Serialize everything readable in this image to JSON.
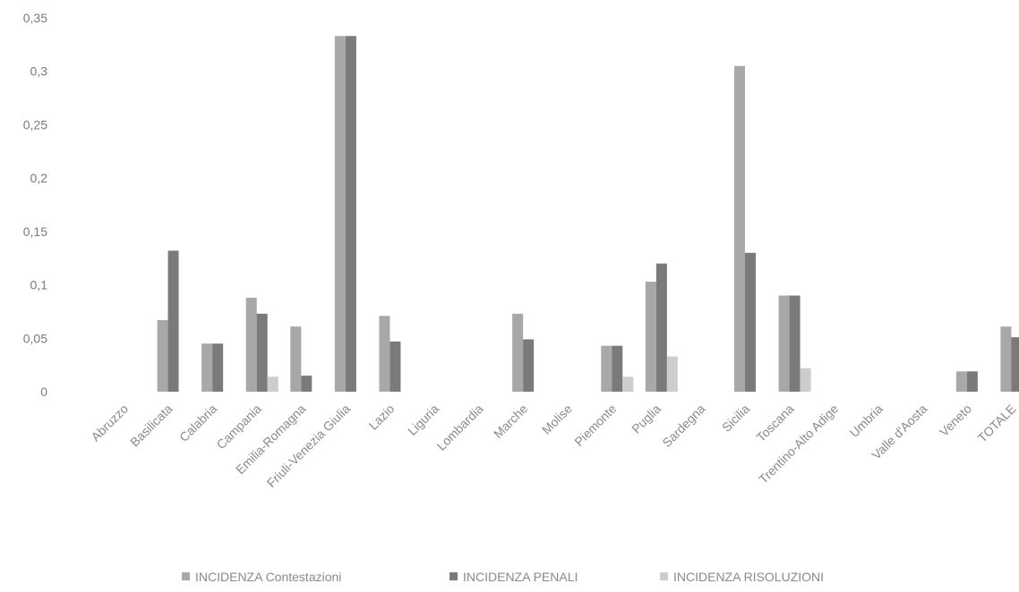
{
  "chart_data": {
    "type": "bar",
    "title": "",
    "xlabel": "",
    "ylabel": "",
    "ylim": [
      0,
      0.35
    ],
    "yticks": [
      "0",
      "0,05",
      "0,1",
      "0,15",
      "0,2",
      "0,25",
      "0,3",
      "0,35"
    ],
    "grid": false,
    "legend_position": "bottom",
    "categories": [
      "Abruzzo",
      "Basilicata",
      "Calabria",
      "Campania",
      "Emilia-Romagna",
      "Friuli-Venezia Giulia",
      "Lazio",
      "Liguria",
      "Lombardia",
      "Marche",
      "Molise",
      "Piemonte",
      "Puglia",
      "Sardegna",
      "Sicilia",
      "Toscana",
      "Trentino-Alto Adige",
      "Umbria",
      "Valle d'Aosta",
      "Veneto",
      "TOTALE"
    ],
    "series": [
      {
        "name": "INCIDENZA Contestazioni",
        "color": "#a8a8a8",
        "values": [
          0,
          0.067,
          0.045,
          0.088,
          0.061,
          0.333,
          0.071,
          0,
          0,
          0.073,
          0,
          0.043,
          0.103,
          0,
          0.305,
          0.09,
          0,
          0,
          0,
          0.019,
          0.061
        ]
      },
      {
        "name": "INCIDENZA PENALI",
        "color": "#7a7a7a",
        "values": [
          0,
          0.132,
          0.045,
          0.073,
          0.015,
          0.333,
          0.047,
          0,
          0,
          0.049,
          0,
          0.043,
          0.12,
          0,
          0.13,
          0.09,
          0,
          0,
          0,
          0.019,
          0.051
        ]
      },
      {
        "name": "INCIDENZA RISOLUZIONI",
        "color": "#cdcdcd",
        "values": [
          0,
          0,
          0,
          0.014,
          0,
          0,
          0,
          0,
          0,
          0,
          0,
          0.014,
          0.033,
          0,
          0,
          0.022,
          0,
          0,
          0,
          0,
          0.006
        ]
      }
    ]
  }
}
